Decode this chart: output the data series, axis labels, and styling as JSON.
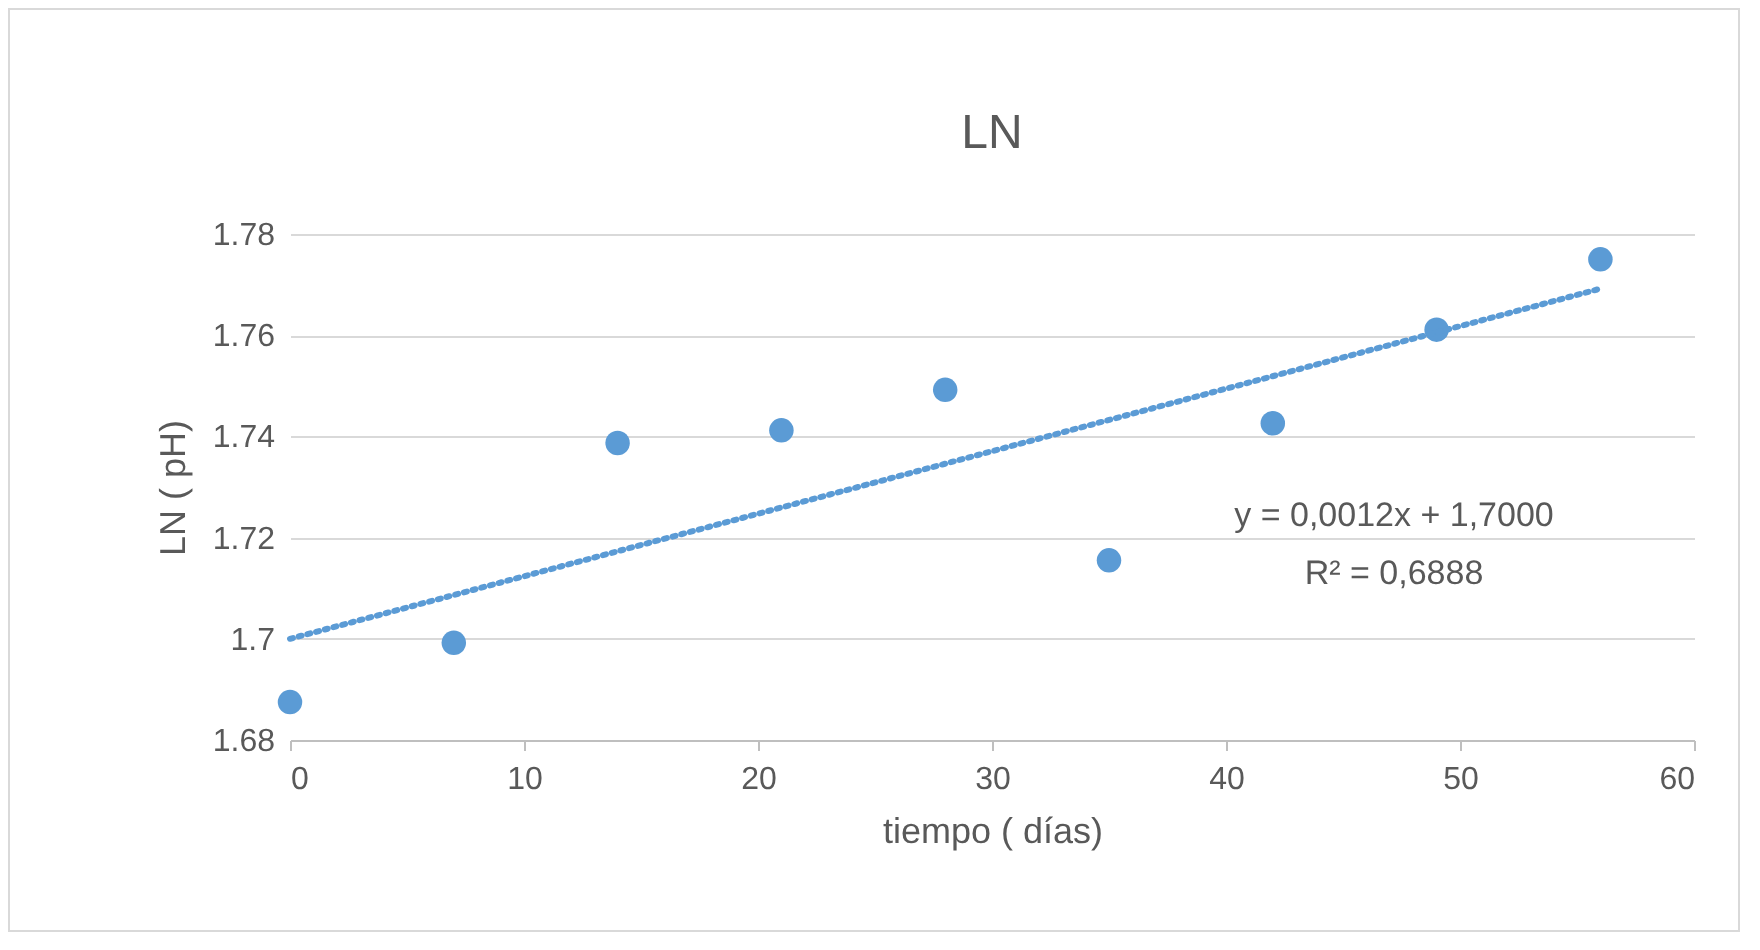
{
  "chart_data": {
    "type": "scatter",
    "title": "LN",
    "xlabel": "tiempo ( días)",
    "ylabel": "LN ( pH)",
    "series": [
      {
        "color": "#5b9bd5",
        "marker": "circle",
        "x": [
          0,
          7,
          14,
          21,
          28,
          35,
          42,
          49,
          56
        ],
        "values": [
          1.6875,
          1.6992,
          1.7387,
          1.7412,
          1.7492,
          1.7155,
          1.7426,
          1.7611,
          1.775
        ]
      },
      {
        "type": "line",
        "color": "#5b9bd5",
        "line_style": "dotted",
        "marker": "none",
        "x": [
          0,
          56
        ],
        "values": [
          1.7,
          1.7692
        ]
      }
    ],
    "xlim": [
      0,
      60
    ],
    "xticks": [
      0,
      10,
      20,
      30,
      40,
      50,
      60
    ],
    "ylim": [
      1.68,
      1.78
    ],
    "yticks": [
      1.68,
      1.7,
      1.72,
      1.74,
      1.76,
      1.78
    ],
    "grid": "y",
    "annotations": [
      "y = 0,0012x + 1,7000",
      "R² = 0,6888"
    ]
  }
}
